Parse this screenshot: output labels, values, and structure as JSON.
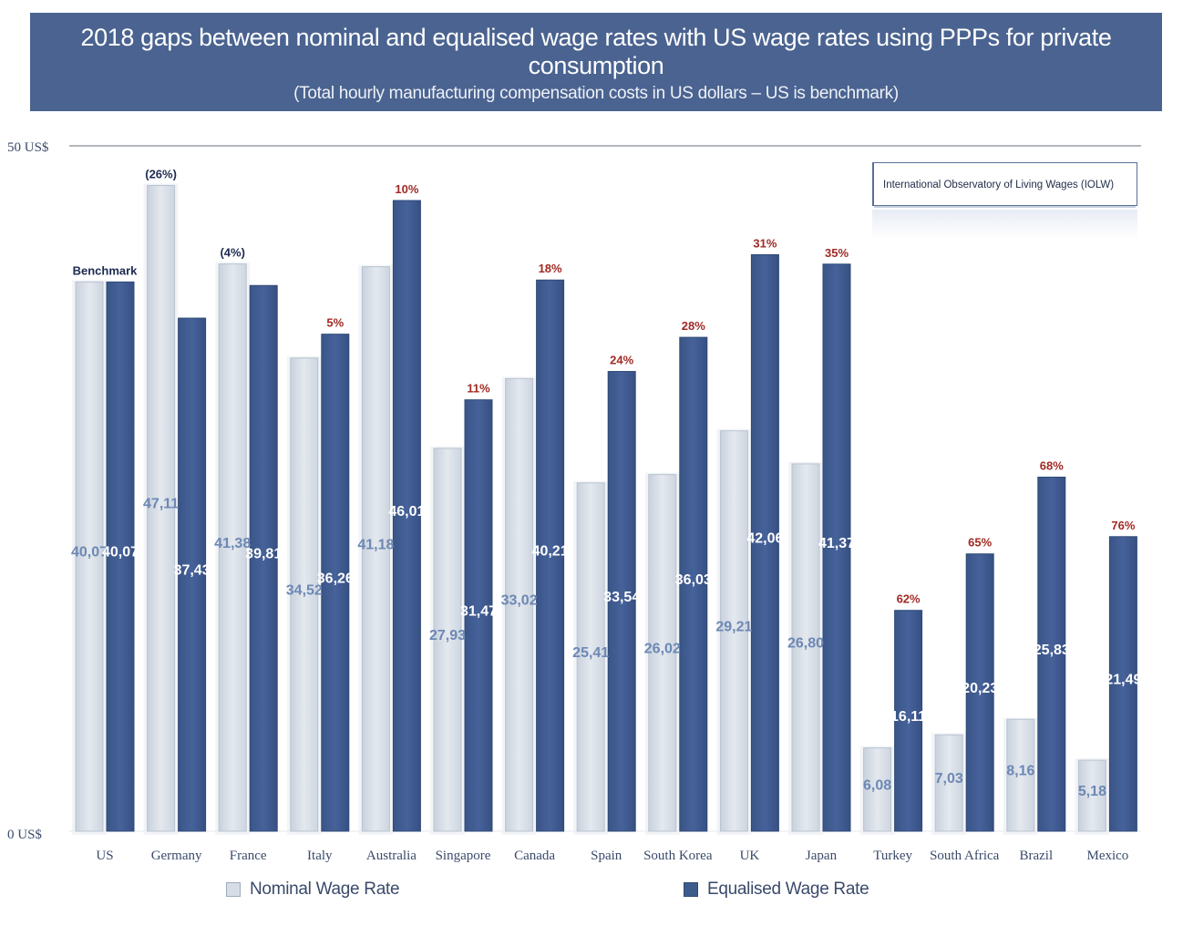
{
  "chart_data": {
    "type": "bar",
    "title": "2018 gaps between nominal and equalised wage rates with US wage rates using PPPs for private consumption",
    "subtitle": "(Total hourly manufacturing compensation costs in US dollars – US is benchmark)",
    "source": "International Observatory of Living Wages (IOLW)",
    "y_tick_labels": [
      "0 US$",
      "50 US$"
    ],
    "ylim": [
      0,
      50
    ],
    "categories": [
      "US",
      "Germany",
      "France",
      "Italy",
      "Australia",
      "Singapore",
      "Canada",
      "Spain",
      "South Korea",
      "UK",
      "Japan",
      "Turkey",
      "South Africa",
      "Brazil",
      "Mexico"
    ],
    "series": [
      {
        "name": "Nominal Wage Rate",
        "values": [
          40.07,
          47.11,
          41.38,
          34.52,
          41.18,
          27.93,
          33.02,
          25.41,
          26.02,
          29.21,
          26.8,
          6.08,
          7.03,
          8.16,
          5.18
        ],
        "labels": [
          "40,07",
          "47,11",
          "41,38",
          "34,52",
          "41,18",
          "27,93",
          "33,02",
          "25,41",
          "26,02",
          "29,21",
          "26,80",
          "6,08",
          "7,03",
          "8,16",
          "5,18"
        ],
        "color": "#d6dde6"
      },
      {
        "name": "Equalised Wage Rate",
        "values": [
          40.07,
          37.43,
          39.81,
          36.26,
          46.01,
          31.47,
          40.21,
          33.54,
          36.03,
          42.06,
          41.37,
          16.11,
          20.23,
          25.83,
          21.49
        ],
        "labels": [
          "40,07",
          "37,43",
          "39,81",
          "36,26",
          "46,01",
          "31,47",
          "40,21",
          "33,54",
          "36,03",
          "42,06",
          "41,37",
          "16,11",
          "20,23",
          "25,83",
          "21,49"
        ],
        "color": "#3f5b8c"
      }
    ],
    "gap_annotations": [
      "Benchmark",
      "(26%)",
      "(4%)",
      "5%",
      "10%",
      "11%",
      "18%",
      "24%",
      "28%",
      "31%",
      "35%",
      "62%",
      "65%",
      "68%",
      "76%"
    ],
    "gap_annotation_on_series": [
      "Equalised Wage Rate",
      "Nominal Wage Rate",
      "Nominal Wage Rate",
      "Equalised Wage Rate",
      "Equalised Wage Rate",
      "Equalised Wage Rate",
      "Equalised Wage Rate",
      "Equalised Wage Rate",
      "Equalised Wage Rate",
      "Equalised Wage Rate",
      "Equalised Wage Rate",
      "Equalised Wage Rate",
      "Equalised Wage Rate",
      "Equalised Wage Rate",
      "Equalised Wage Rate"
    ],
    "gap_colors": {
      "benchmark": "#1c2a50",
      "negative": "#1c2a50",
      "positive": "#a02a24"
    },
    "legend_position": "bottom",
    "grid": false
  }
}
